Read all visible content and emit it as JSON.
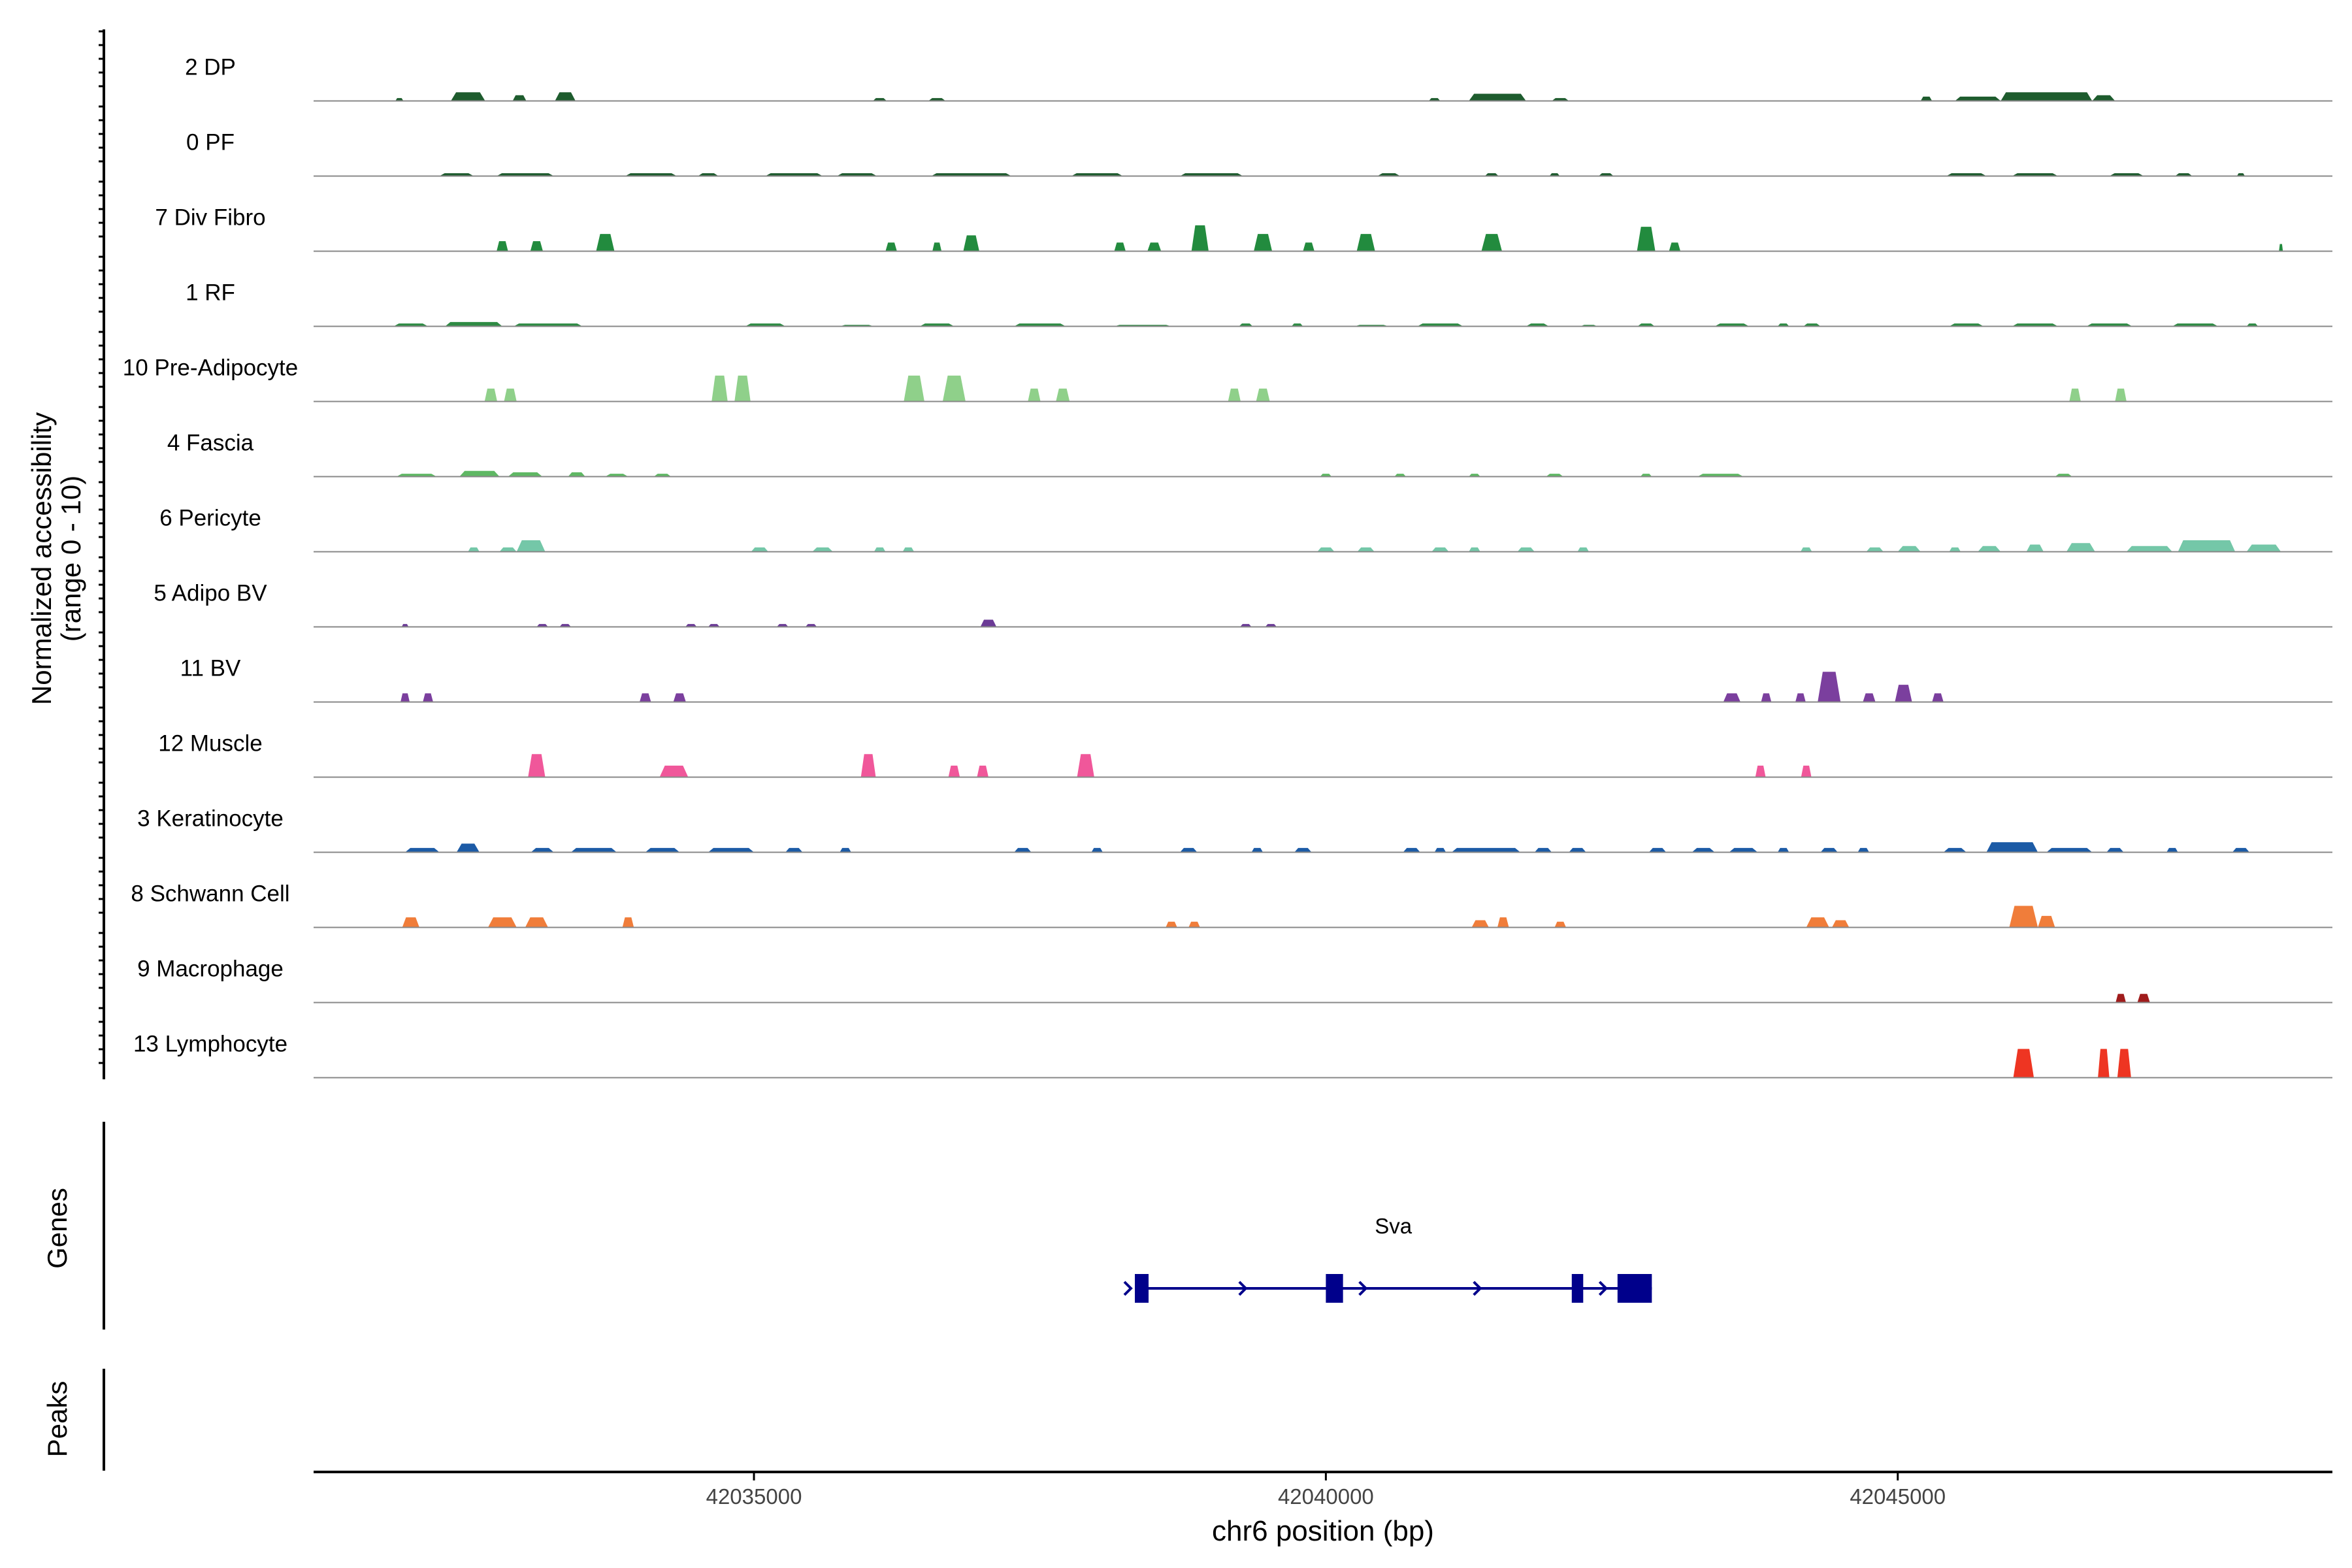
{
  "chart_data": {
    "type": "area",
    "y_axis_label_line1": "Normalized accessibility",
    "y_axis_label_line2": "(range 0 - 10)",
    "ylim": [
      0,
      10
    ],
    "xlabel": "chr6 position (bp)",
    "xlim": [
      42031150,
      42048800
    ],
    "x_ticks": [
      42035000,
      42040000,
      42045000
    ],
    "x_tick_labels": [
      "42035000",
      "42040000",
      "42045000"
    ],
    "tracks": [
      {
        "name": "2 DP",
        "color": "#1e5c2e",
        "peaks": [
          [
            42031900,
            70,
            2
          ],
          [
            42032500,
            300,
            6
          ],
          [
            42032950,
            120,
            4
          ],
          [
            42033350,
            180,
            6
          ],
          [
            42036100,
            120,
            2
          ],
          [
            42036600,
            150,
            2
          ],
          [
            42040950,
            100,
            2
          ],
          [
            42041500,
            500,
            5
          ],
          [
            42042050,
            150,
            2
          ],
          [
            42045250,
            100,
            3
          ],
          [
            42045700,
            400,
            3
          ],
          [
            42046300,
            800,
            6
          ],
          [
            42046800,
            200,
            4
          ]
        ]
      },
      {
        "name": "0 PF",
        "color": "#1e5c2e",
        "peaks": [
          [
            42032400,
            300,
            2
          ],
          [
            42033000,
            500,
            2
          ],
          [
            42034100,
            450,
            2
          ],
          [
            42034600,
            180,
            2
          ],
          [
            42035350,
            500,
            2
          ],
          [
            42035900,
            350,
            2
          ],
          [
            42036900,
            700,
            2
          ],
          [
            42038000,
            450,
            2
          ],
          [
            42039000,
            550,
            2
          ],
          [
            42040550,
            200,
            2
          ],
          [
            42041450,
            120,
            2
          ],
          [
            42042000,
            90,
            2
          ],
          [
            42042450,
            130,
            2
          ],
          [
            42045600,
            350,
            2
          ],
          [
            42046200,
            400,
            2
          ],
          [
            42047000,
            300,
            2
          ],
          [
            42047500,
            150,
            2
          ],
          [
            42048000,
            70,
            2
          ]
        ]
      },
      {
        "name": "7 Div Fibro",
        "color": "#228b3e",
        "peaks": [
          [
            42032800,
            100,
            7
          ],
          [
            42033100,
            110,
            7
          ],
          [
            42033700,
            160,
            12
          ],
          [
            42036200,
            100,
            6
          ],
          [
            42036600,
            80,
            6
          ],
          [
            42036900,
            140,
            11
          ],
          [
            42038200,
            100,
            6
          ],
          [
            42038500,
            120,
            6
          ],
          [
            42038900,
            150,
            18
          ],
          [
            42039450,
            160,
            12
          ],
          [
            42039850,
            100,
            6
          ],
          [
            42040350,
            160,
            12
          ],
          [
            42041450,
            180,
            12
          ],
          [
            42042800,
            160,
            17
          ],
          [
            42043050,
            100,
            6
          ],
          [
            42048350,
            30,
            5
          ]
        ]
      },
      {
        "name": "1 RF",
        "color": "#2e8b44",
        "peaks": [
          [
            42032000,
            300,
            2
          ],
          [
            42032550,
            500,
            3
          ],
          [
            42033200,
            600,
            2
          ],
          [
            42035100,
            350,
            2
          ],
          [
            42035900,
            300,
            1
          ],
          [
            42036600,
            300,
            2
          ],
          [
            42037500,
            450,
            2
          ],
          [
            42038400,
            500,
            1
          ],
          [
            42039300,
            120,
            2
          ],
          [
            42039750,
            100,
            2
          ],
          [
            42040400,
            300,
            1
          ],
          [
            42041000,
            400,
            2
          ],
          [
            42041850,
            200,
            2
          ],
          [
            42042300,
            150,
            1
          ],
          [
            42042800,
            150,
            2
          ],
          [
            42043550,
            300,
            2
          ],
          [
            42044000,
            100,
            2
          ],
          [
            42044250,
            150,
            2
          ],
          [
            42045600,
            300,
            2
          ],
          [
            42046200,
            400,
            2
          ],
          [
            42046850,
            400,
            2
          ],
          [
            42047600,
            400,
            2
          ],
          [
            42048100,
            100,
            2
          ]
        ]
      },
      {
        "name": "10 Pre-Adipocyte",
        "color": "#8fd08a",
        "peaks": [
          [
            42032700,
            110,
            9
          ],
          [
            42032870,
            110,
            9
          ],
          [
            42034700,
            140,
            18
          ],
          [
            42034900,
            140,
            18
          ],
          [
            42036400,
            180,
            18
          ],
          [
            42036750,
            200,
            18
          ],
          [
            42037450,
            110,
            9
          ],
          [
            42037700,
            120,
            9
          ],
          [
            42039200,
            110,
            9
          ],
          [
            42039450,
            120,
            9
          ],
          [
            42046550,
            100,
            9
          ],
          [
            42046950,
            100,
            9
          ]
        ]
      },
      {
        "name": "4 Fascia",
        "color": "#5fb864",
        "peaks": [
          [
            42032050,
            350,
            2
          ],
          [
            42032600,
            350,
            4
          ],
          [
            42033000,
            300,
            3
          ],
          [
            42033450,
            150,
            3
          ],
          [
            42033800,
            200,
            2
          ],
          [
            42034200,
            150,
            2
          ],
          [
            42040000,
            100,
            2
          ],
          [
            42040650,
            100,
            2
          ],
          [
            42041300,
            100,
            2
          ],
          [
            42042000,
            150,
            2
          ],
          [
            42042800,
            100,
            2
          ],
          [
            42043450,
            400,
            2
          ],
          [
            42046450,
            150,
            2
          ]
        ]
      },
      {
        "name": "6 Pericyte",
        "color": "#74c7a8",
        "peaks": [
          [
            42032550,
            100,
            3
          ],
          [
            42032850,
            150,
            3
          ],
          [
            42033050,
            250,
            8
          ],
          [
            42035050,
            150,
            3
          ],
          [
            42035600,
            180,
            3
          ],
          [
            42036100,
            100,
            3
          ],
          [
            42036350,
            100,
            3
          ],
          [
            42040000,
            150,
            3
          ],
          [
            42040350,
            150,
            3
          ],
          [
            42041000,
            150,
            3
          ],
          [
            42041300,
            100,
            3
          ],
          [
            42041750,
            150,
            3
          ],
          [
            42042250,
            100,
            3
          ],
          [
            42044200,
            100,
            3
          ],
          [
            42044800,
            150,
            3
          ],
          [
            42045100,
            200,
            4
          ],
          [
            42045500,
            100,
            3
          ],
          [
            42045800,
            200,
            4
          ],
          [
            42046200,
            150,
            5
          ],
          [
            42046600,
            250,
            6
          ],
          [
            42047200,
            400,
            4
          ],
          [
            42047700,
            500,
            8
          ],
          [
            42048200,
            300,
            5
          ]
        ]
      },
      {
        "name": "5 Adipo BV",
        "color": "#6b3b96",
        "peaks": [
          [
            42031950,
            60,
            2
          ],
          [
            42033150,
            100,
            2
          ],
          [
            42033350,
            100,
            2
          ],
          [
            42034450,
            100,
            2
          ],
          [
            42034650,
            100,
            2
          ],
          [
            42035250,
            100,
            2
          ],
          [
            42035500,
            100,
            2
          ],
          [
            42037050,
            140,
            5
          ],
          [
            42039300,
            100,
            2
          ],
          [
            42039520,
            100,
            2
          ]
        ]
      },
      {
        "name": "11 BV",
        "color": "#7b3f9e",
        "peaks": [
          [
            42031950,
            80,
            6
          ],
          [
            42032150,
            90,
            6
          ],
          [
            42034050,
            100,
            6
          ],
          [
            42034350,
            110,
            6
          ],
          [
            42043550,
            150,
            6
          ],
          [
            42043850,
            90,
            6
          ],
          [
            42044150,
            90,
            6
          ],
          [
            42044400,
            200,
            21
          ],
          [
            42044750,
            110,
            6
          ],
          [
            42045050,
            150,
            12
          ],
          [
            42045350,
            100,
            6
          ]
        ]
      },
      {
        "name": "12 Muscle",
        "color": "#f0579a",
        "peaks": [
          [
            42033100,
            150,
            16
          ],
          [
            42034300,
            250,
            8
          ],
          [
            42036000,
            130,
            16
          ],
          [
            42036750,
            100,
            8
          ],
          [
            42037000,
            100,
            8
          ],
          [
            42037900,
            150,
            16
          ],
          [
            42043800,
            90,
            8
          ],
          [
            42044200,
            90,
            8
          ]
        ]
      },
      {
        "name": "3 Keratinocyte",
        "color": "#1c5ba6",
        "peaks": [
          [
            42032100,
            300,
            3
          ],
          [
            42032500,
            200,
            6
          ],
          [
            42033150,
            200,
            3
          ],
          [
            42033600,
            400,
            3
          ],
          [
            42034200,
            300,
            3
          ],
          [
            42034800,
            400,
            3
          ],
          [
            42035350,
            150,
            3
          ],
          [
            42035800,
            100,
            3
          ],
          [
            42037350,
            150,
            3
          ],
          [
            42038000,
            100,
            3
          ],
          [
            42038800,
            150,
            3
          ],
          [
            42039400,
            100,
            3
          ],
          [
            42039800,
            150,
            3
          ],
          [
            42040750,
            150,
            3
          ],
          [
            42041000,
            100,
            3
          ],
          [
            42041400,
            600,
            3
          ],
          [
            42041900,
            150,
            3
          ],
          [
            42042200,
            150,
            3
          ],
          [
            42042900,
            150,
            3
          ],
          [
            42043300,
            200,
            3
          ],
          [
            42043650,
            250,
            3
          ],
          [
            42044000,
            100,
            3
          ],
          [
            42044400,
            150,
            3
          ],
          [
            42044700,
            100,
            3
          ],
          [
            42045500,
            200,
            3
          ],
          [
            42046000,
            450,
            7
          ],
          [
            42046500,
            400,
            3
          ],
          [
            42046900,
            150,
            3
          ],
          [
            42047400,
            100,
            3
          ],
          [
            42048000,
            150,
            3
          ]
        ]
      },
      {
        "name": "8 Schwann Cell",
        "color": "#f07d3a",
        "peaks": [
          [
            42032000,
            150,
            7
          ],
          [
            42032800,
            250,
            7
          ],
          [
            42033100,
            200,
            7
          ],
          [
            42033900,
            100,
            7
          ],
          [
            42038650,
            100,
            4
          ],
          [
            42038850,
            100,
            4
          ],
          [
            42041350,
            150,
            5
          ],
          [
            42041550,
            100,
            7
          ],
          [
            42042050,
            100,
            4
          ],
          [
            42044300,
            200,
            7
          ],
          [
            42044500,
            150,
            5
          ],
          [
            42046100,
            250,
            15
          ],
          [
            42046300,
            150,
            8
          ]
        ]
      },
      {
        "name": "9 Macrophage",
        "color": "#a01c1c",
        "peaks": [
          [
            42046950,
            90,
            6
          ],
          [
            42047150,
            110,
            6
          ]
        ]
      },
      {
        "name": "13 Lymphocyte",
        "color": "#ee3522",
        "peaks": [
          [
            42046100,
            180,
            20
          ],
          [
            42046800,
            100,
            20
          ],
          [
            42046980,
            120,
            20
          ]
        ]
      }
    ],
    "genes_label": "Genes",
    "peaks_label": "Peaks",
    "gene": {
      "name": "Sva",
      "strand": "+",
      "color": "#00008b",
      "start": 42038330,
      "end": 42042850,
      "exons": [
        [
          42038330,
          42038450
        ],
        [
          42040000,
          42040150
        ],
        [
          42042150,
          42042250
        ],
        [
          42042550,
          42042850
        ]
      ]
    }
  }
}
